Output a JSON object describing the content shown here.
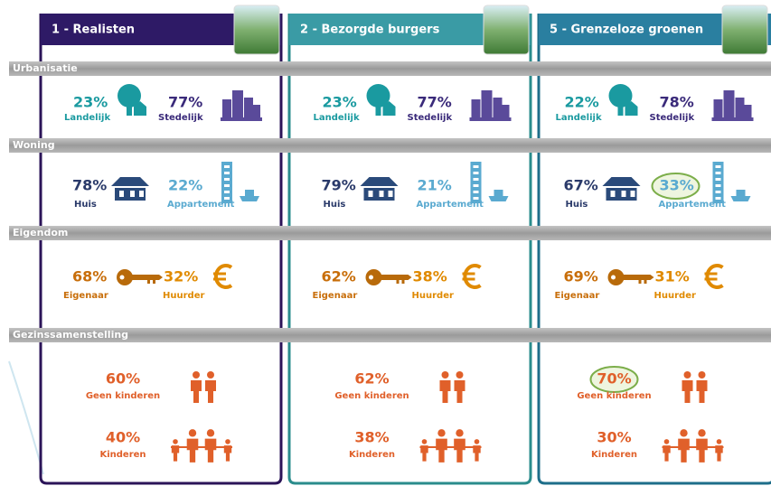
{
  "sections": {
    "urbanisatie": "Urbanisatie",
    "woning": "Woning",
    "eigendom": "Eigendom",
    "gezin": "Gezinssamenstelling"
  },
  "columns": [
    {
      "title": "1 - Realisten",
      "urbanisatie": [
        {
          "value": "23%",
          "label": "Landelijk"
        },
        {
          "value": "77%",
          "label": "Stedelijk"
        }
      ],
      "woning": [
        {
          "value": "78%",
          "label": "Huis"
        },
        {
          "value": "22%",
          "label": "Appartement"
        }
      ],
      "eigendom": [
        {
          "value": "68%",
          "label": "Eigenaar"
        },
        {
          "value": "32%",
          "label": "Huurder"
        }
      ],
      "gezin": [
        {
          "value": "60%",
          "label": "Geen kinderen"
        },
        {
          "value": "40%",
          "label": "Kinderen"
        }
      ]
    },
    {
      "title": "2 - Bezorgde burgers",
      "urbanisatie": [
        {
          "value": "23%",
          "label": "Landelijk"
        },
        {
          "value": "77%",
          "label": "Stedelijk"
        }
      ],
      "woning": [
        {
          "value": "79%",
          "label": "Huis"
        },
        {
          "value": "21%",
          "label": "Appartement"
        }
      ],
      "eigendom": [
        {
          "value": "62%",
          "label": "Eigenaar"
        },
        {
          "value": "38%",
          "label": "Huurder"
        }
      ],
      "gezin": [
        {
          "value": "62%",
          "label": "Geen kinderen"
        },
        {
          "value": "38%",
          "label": "Kinderen"
        }
      ]
    },
    {
      "title": "5 - Grenzeloze groenen",
      "urbanisatie": [
        {
          "value": "22%",
          "label": "Landelijk"
        },
        {
          "value": "78%",
          "label": "Stedelijk"
        }
      ],
      "woning": [
        {
          "value": "67%",
          "label": "Huis"
        },
        {
          "value": "33%",
          "label": "Appartement",
          "highlighted": true
        }
      ],
      "eigendom": [
        {
          "value": "69%",
          "label": "Eigenaar"
        },
        {
          "value": "31%",
          "label": "Huurder"
        }
      ],
      "gezin": [
        {
          "value": "70%",
          "label": "Geen kinderen",
          "highlighted": true
        },
        {
          "value": "30%",
          "label": "Kinderen"
        }
      ]
    }
  ]
}
